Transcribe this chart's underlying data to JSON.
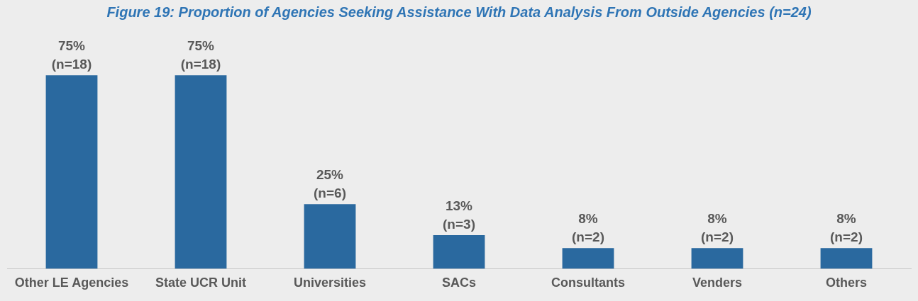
{
  "chart_data": {
    "type": "bar",
    "title": "Figure 19: Proportion of Agencies Seeking Assistance With Data Analysis From Outside Agencies (n=24)",
    "categories": [
      "Other LE Agencies",
      "State UCR Unit",
      "Universities",
      "SACs",
      "Consultants",
      "Venders",
      "Others"
    ],
    "values": [
      75,
      75,
      25,
      13,
      8,
      8,
      8
    ],
    "value_labels": [
      "75%\n(n=18)",
      "75%\n(n=18)",
      "25%\n(n=6)",
      "13%\n(n=3)",
      "8%\n(n=2)",
      "8%\n(n=2)",
      "8%\n(n=2)"
    ],
    "color": "#2a699f",
    "grid": false,
    "legend": false
  }
}
